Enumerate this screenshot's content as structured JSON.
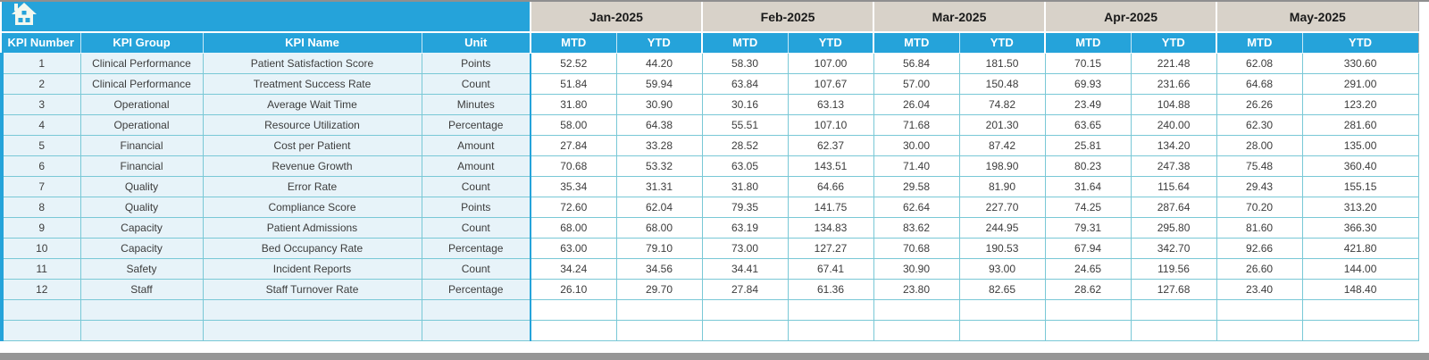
{
  "colors": {
    "accent_blue": "#25A3DA",
    "month_band_beige": "#D8D2C9",
    "row_fill_blue": "#E7F3F9",
    "grid_teal": "#79C8D6",
    "scrollbar_gray": "#969696"
  },
  "toolbar": {
    "home_icon": "home"
  },
  "table": {
    "fixed_headers": [
      "KPI Number",
      "KPI Group",
      "KPI Name",
      "Unit"
    ],
    "months": [
      "Jan-2025",
      "Feb-2025",
      "Mar-2025",
      "Apr-2025",
      "May-2025"
    ],
    "period_headers": [
      "MTD",
      "YTD"
    ],
    "rows": [
      {
        "kpi_number": "1",
        "kpi_group": "Clinical Performance",
        "kpi_name": "Patient Satisfaction Score",
        "unit": "Points",
        "values": [
          "52.52",
          "44.20",
          "58.30",
          "107.00",
          "56.84",
          "181.50",
          "70.15",
          "221.48",
          "62.08",
          "330.60"
        ]
      },
      {
        "kpi_number": "2",
        "kpi_group": "Clinical Performance",
        "kpi_name": "Treatment Success Rate",
        "unit": "Count",
        "values": [
          "51.84",
          "59.94",
          "63.84",
          "107.67",
          "57.00",
          "150.48",
          "69.93",
          "231.66",
          "64.68",
          "291.00"
        ]
      },
      {
        "kpi_number": "3",
        "kpi_group": "Operational",
        "kpi_name": "Average Wait Time",
        "unit": "Minutes",
        "values": [
          "31.80",
          "30.90",
          "30.16",
          "63.13",
          "26.04",
          "74.82",
          "23.49",
          "104.88",
          "26.26",
          "123.20"
        ]
      },
      {
        "kpi_number": "4",
        "kpi_group": "Operational",
        "kpi_name": "Resource Utilization",
        "unit": "Percentage",
        "values": [
          "58.00",
          "64.38",
          "55.51",
          "107.10",
          "71.68",
          "201.30",
          "63.65",
          "240.00",
          "62.30",
          "281.60"
        ]
      },
      {
        "kpi_number": "5",
        "kpi_group": "Financial",
        "kpi_name": "Cost per Patient",
        "unit": "Amount",
        "values": [
          "27.84",
          "33.28",
          "28.52",
          "62.37",
          "30.00",
          "87.42",
          "25.81",
          "134.20",
          "28.00",
          "135.00"
        ]
      },
      {
        "kpi_number": "6",
        "kpi_group": "Financial",
        "kpi_name": "Revenue Growth",
        "unit": "Amount",
        "values": [
          "70.68",
          "53.32",
          "63.05",
          "143.51",
          "71.40",
          "198.90",
          "80.23",
          "247.38",
          "75.48",
          "360.40"
        ]
      },
      {
        "kpi_number": "7",
        "kpi_group": "Quality",
        "kpi_name": "Error Rate",
        "unit": "Count",
        "values": [
          "35.34",
          "31.31",
          "31.80",
          "64.66",
          "29.58",
          "81.90",
          "31.64",
          "115.64",
          "29.43",
          "155.15"
        ]
      },
      {
        "kpi_number": "8",
        "kpi_group": "Quality",
        "kpi_name": "Compliance Score",
        "unit": "Points",
        "values": [
          "72.60",
          "62.04",
          "79.35",
          "141.75",
          "62.64",
          "227.70",
          "74.25",
          "287.64",
          "70.20",
          "313.20"
        ]
      },
      {
        "kpi_number": "9",
        "kpi_group": "Capacity",
        "kpi_name": "Patient Admissions",
        "unit": "Count",
        "values": [
          "68.00",
          "68.00",
          "63.19",
          "134.83",
          "83.62",
          "244.95",
          "79.31",
          "295.80",
          "81.60",
          "366.30"
        ]
      },
      {
        "kpi_number": "10",
        "kpi_group": "Capacity",
        "kpi_name": "Bed Occupancy Rate",
        "unit": "Percentage",
        "values": [
          "63.00",
          "79.10",
          "73.00",
          "127.27",
          "70.68",
          "190.53",
          "67.94",
          "342.70",
          "92.66",
          "421.80"
        ]
      },
      {
        "kpi_number": "11",
        "kpi_group": "Safety",
        "kpi_name": "Incident Reports",
        "unit": "Count",
        "values": [
          "34.24",
          "34.56",
          "34.41",
          "67.41",
          "30.90",
          "93.00",
          "24.65",
          "119.56",
          "26.60",
          "144.00"
        ]
      },
      {
        "kpi_number": "12",
        "kpi_group": "Staff",
        "kpi_name": "Staff Turnover Rate",
        "unit": "Percentage",
        "values": [
          "26.10",
          "29.70",
          "27.84",
          "61.36",
          "23.80",
          "82.65",
          "28.62",
          "127.68",
          "23.40",
          "148.40"
        ]
      }
    ],
    "empty_row_count": 2
  }
}
